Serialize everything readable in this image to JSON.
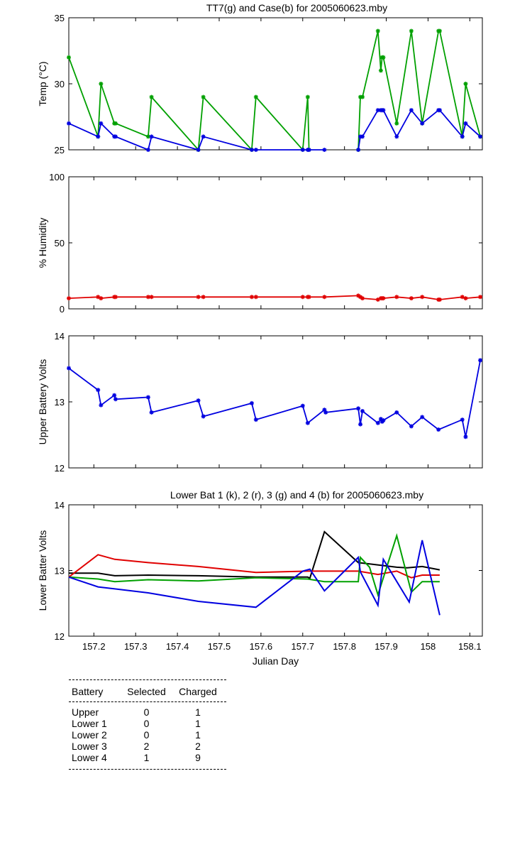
{
  "chart_data": [
    {
      "type": "line",
      "title": "TT7(g) and Case(b) for 2005060623.mby",
      "xlabel": "",
      "ylabel": "Temp  (°C)",
      "xlim": [
        157.14,
        158.13
      ],
      "ylim": [
        25,
        35
      ],
      "yticks": [
        "25",
        "30",
        "35"
      ],
      "grid": false,
      "series": [
        {
          "name": "TT7",
          "color": "#00a000",
          "segments": [
            [
              [
                157.14,
                32
              ],
              [
                157.21,
                26
              ],
              [
                157.217,
                30
              ],
              [
                157.249,
                27
              ],
              [
                157.252,
                27
              ],
              [
                157.33,
                26
              ],
              [
                157.338,
                29
              ],
              [
                157.45,
                25
              ],
              [
                157.462,
                29
              ],
              [
                157.578,
                25
              ],
              [
                157.588,
                29
              ],
              [
                157.7,
                25
              ],
              [
                157.712,
                29
              ],
              [
                157.715,
                25
              ]
            ],
            [
              [
                157.833,
                25
              ],
              [
                157.838,
                29
              ],
              [
                157.843,
                29
              ],
              [
                157.88,
                34
              ],
              [
                157.887,
                31
              ],
              [
                157.89,
                32
              ],
              [
                157.893,
                32
              ],
              [
                157.925,
                27
              ],
              [
                157.96,
                34
              ],
              [
                157.986,
                27
              ],
              [
                158.025,
                34
              ],
              [
                158.028,
                34
              ],
              [
                158.082,
                26
              ],
              [
                158.09,
                30
              ],
              [
                158.125,
                26
              ]
            ]
          ]
        },
        {
          "name": "Case",
          "color": "#0000e0",
          "segments": [
            [
              [
                157.14,
                27
              ],
              [
                157.21,
                26
              ],
              [
                157.217,
                27
              ],
              [
                157.249,
                26
              ],
              [
                157.252,
                26
              ],
              [
                157.33,
                25
              ],
              [
                157.338,
                26
              ],
              [
                157.45,
                25
              ],
              [
                157.462,
                26
              ],
              [
                157.578,
                25
              ],
              [
                157.588,
                25
              ],
              [
                157.7,
                25
              ],
              [
                157.712,
                25
              ],
              [
                157.715,
                25
              ],
              [
                157.752,
                25
              ]
            ],
            [
              [
                157.833,
                25
              ],
              [
                157.838,
                26
              ],
              [
                157.843,
                26
              ],
              [
                157.88,
                28
              ],
              [
                157.887,
                28
              ],
              [
                157.89,
                28
              ],
              [
                157.893,
                28
              ],
              [
                157.925,
                26
              ],
              [
                157.96,
                28
              ],
              [
                157.986,
                27
              ],
              [
                158.025,
                28
              ],
              [
                158.028,
                28
              ],
              [
                158.082,
                26
              ],
              [
                158.09,
                27
              ],
              [
                158.125,
                26
              ]
            ]
          ]
        }
      ]
    },
    {
      "type": "line",
      "title": "",
      "xlabel": "",
      "ylabel": "% Humidity",
      "xlim": [
        157.14,
        158.13
      ],
      "ylim": [
        0,
        100
      ],
      "yticks": [
        "0",
        "50",
        "100"
      ],
      "grid": false,
      "series": [
        {
          "name": "Humidity",
          "color": "#e00000",
          "segments": [
            [
              [
                157.14,
                8
              ],
              [
                157.21,
                9
              ],
              [
                157.217,
                8
              ],
              [
                157.249,
                9
              ],
              [
                157.252,
                9
              ],
              [
                157.33,
                9
              ],
              [
                157.338,
                9
              ],
              [
                157.45,
                9
              ],
              [
                157.462,
                9
              ],
              [
                157.578,
                9
              ],
              [
                157.588,
                9
              ],
              [
                157.7,
                9
              ],
              [
                157.712,
                9
              ],
              [
                157.715,
                9
              ],
              [
                157.752,
                9
              ],
              [
                157.833,
                10
              ],
              [
                157.838,
                9
              ],
              [
                157.843,
                8
              ],
              [
                157.88,
                7
              ],
              [
                157.887,
                8
              ],
              [
                157.89,
                8
              ],
              [
                157.893,
                8
              ],
              [
                157.925,
                9
              ],
              [
                157.96,
                8
              ],
              [
                157.986,
                9
              ],
              [
                158.025,
                7
              ],
              [
                158.028,
                7
              ],
              [
                158.082,
                9
              ],
              [
                158.09,
                8
              ],
              [
                158.125,
                9
              ]
            ]
          ]
        }
      ]
    },
    {
      "type": "line",
      "title": "",
      "xlabel": "",
      "ylabel": "Upper Battery Volts",
      "xlim": [
        157.14,
        158.13
      ],
      "ylim": [
        12,
        14
      ],
      "yticks": [
        "12",
        "13",
        "14"
      ],
      "grid": false,
      "series": [
        {
          "name": "Upper",
          "color": "#0000e0",
          "segments": [
            [
              [
                157.14,
                13.51
              ],
              [
                157.21,
                13.18
              ],
              [
                157.217,
                12.95
              ],
              [
                157.249,
                13.1
              ],
              [
                157.252,
                13.04
              ],
              [
                157.33,
                13.07
              ],
              [
                157.338,
                12.84
              ],
              [
                157.45,
                13.02
              ],
              [
                157.462,
                12.78
              ],
              [
                157.578,
                12.98
              ],
              [
                157.588,
                12.73
              ],
              [
                157.7,
                12.94
              ],
              [
                157.712,
                12.68
              ],
              [
                157.752,
                12.88
              ],
              [
                157.755,
                12.84
              ],
              [
                157.833,
                12.9
              ],
              [
                157.838,
                12.66
              ],
              [
                157.843,
                12.86
              ],
              [
                157.88,
                12.68
              ],
              [
                157.887,
                12.74
              ],
              [
                157.89,
                12.7
              ],
              [
                157.893,
                12.72
              ],
              [
                157.925,
                12.84
              ],
              [
                157.96,
                12.63
              ],
              [
                157.986,
                12.77
              ],
              [
                158.025,
                12.58
              ],
              [
                158.082,
                12.73
              ],
              [
                158.09,
                12.47
              ],
              [
                158.125,
                13.63
              ]
            ]
          ]
        }
      ]
    },
    {
      "type": "line",
      "title": "Lower Bat 1 (k), 2 (r), 3 (g) and 4 (b) for 2005060623.mby",
      "xlabel": "Julian Day",
      "ylabel": "Lower Batter Volts",
      "xlim": [
        157.14,
        158.13
      ],
      "ylim": [
        12,
        14
      ],
      "yticks": [
        "12",
        "13",
        "14"
      ],
      "xticks": [
        "157.2",
        "157.3",
        "157.4",
        "157.5",
        "157.6",
        "157.7",
        "157.8",
        "157.9",
        "158",
        "158.1"
      ],
      "grid": false,
      "series": [
        {
          "name": "Lower 1",
          "color": "#000000",
          "segments": [
            [
              [
                157.14,
                12.96
              ],
              [
                157.21,
                12.96
              ],
              [
                157.25,
                12.92
              ],
              [
                157.33,
                12.93
              ],
              [
                157.45,
                12.92
              ],
              [
                157.588,
                12.9
              ],
              [
                157.712,
                12.9
              ],
              [
                157.717,
                12.88
              ],
              [
                157.752,
                13.59
              ],
              [
                157.833,
                13.12
              ],
              [
                157.86,
                13.1
              ],
              [
                157.925,
                13.05
              ],
              [
                157.95,
                13.04
              ],
              [
                157.986,
                13.06
              ],
              [
                158.028,
                13.01
              ]
            ]
          ]
        },
        {
          "name": "Lower 2",
          "color": "#e00000",
          "segments": [
            [
              [
                157.14,
                12.9
              ],
              [
                157.21,
                13.24
              ],
              [
                157.25,
                13.17
              ],
              [
                157.33,
                13.12
              ],
              [
                157.45,
                13.06
              ],
              [
                157.588,
                12.97
              ],
              [
                157.712,
                12.99
              ],
              [
                157.752,
                12.99
              ],
              [
                157.833,
                12.99
              ],
              [
                157.88,
                12.94
              ],
              [
                157.925,
                12.99
              ],
              [
                157.96,
                12.89
              ],
              [
                157.986,
                12.93
              ],
              [
                158.028,
                12.93
              ]
            ]
          ]
        },
        {
          "name": "Lower 3",
          "color": "#00a000",
          "segments": [
            [
              [
                157.14,
                12.9
              ],
              [
                157.21,
                12.87
              ],
              [
                157.25,
                12.83
              ],
              [
                157.33,
                12.86
              ],
              [
                157.45,
                12.84
              ],
              [
                157.588,
                12.89
              ],
              [
                157.712,
                12.87
              ],
              [
                157.752,
                12.83
              ],
              [
                157.833,
                12.83
              ],
              [
                157.838,
                13.2
              ],
              [
                157.86,
                13.05
              ],
              [
                157.88,
                12.63
              ],
              [
                157.925,
                13.53
              ],
              [
                157.96,
                12.67
              ],
              [
                157.986,
                12.83
              ],
              [
                158.028,
                12.83
              ]
            ]
          ]
        },
        {
          "name": "Lower 4",
          "color": "#0000e0",
          "segments": [
            [
              [
                157.14,
                12.9
              ],
              [
                157.21,
                12.75
              ],
              [
                157.25,
                12.72
              ],
              [
                157.33,
                12.66
              ],
              [
                157.45,
                12.53
              ],
              [
                157.588,
                12.44
              ],
              [
                157.7,
                12.99
              ],
              [
                157.717,
                13.02
              ],
              [
                157.752,
                12.69
              ],
              [
                157.833,
                13.2
              ],
              [
                157.838,
                12.98
              ],
              [
                157.88,
                12.47
              ],
              [
                157.893,
                13.17
              ],
              [
                157.955,
                12.52
              ],
              [
                157.986,
                13.46
              ],
              [
                158.028,
                12.32
              ]
            ]
          ]
        }
      ]
    }
  ],
  "summary_table": {
    "headers": [
      "Battery",
      "Selected",
      "Charged"
    ],
    "rows": [
      [
        "Upper",
        "0",
        "1"
      ],
      [
        "Lower 1",
        "0",
        "1"
      ],
      [
        "Lower 2",
        "0",
        "1"
      ],
      [
        "Lower 3",
        "2",
        "2"
      ],
      [
        "Lower 4",
        "1",
        "9"
      ]
    ]
  }
}
